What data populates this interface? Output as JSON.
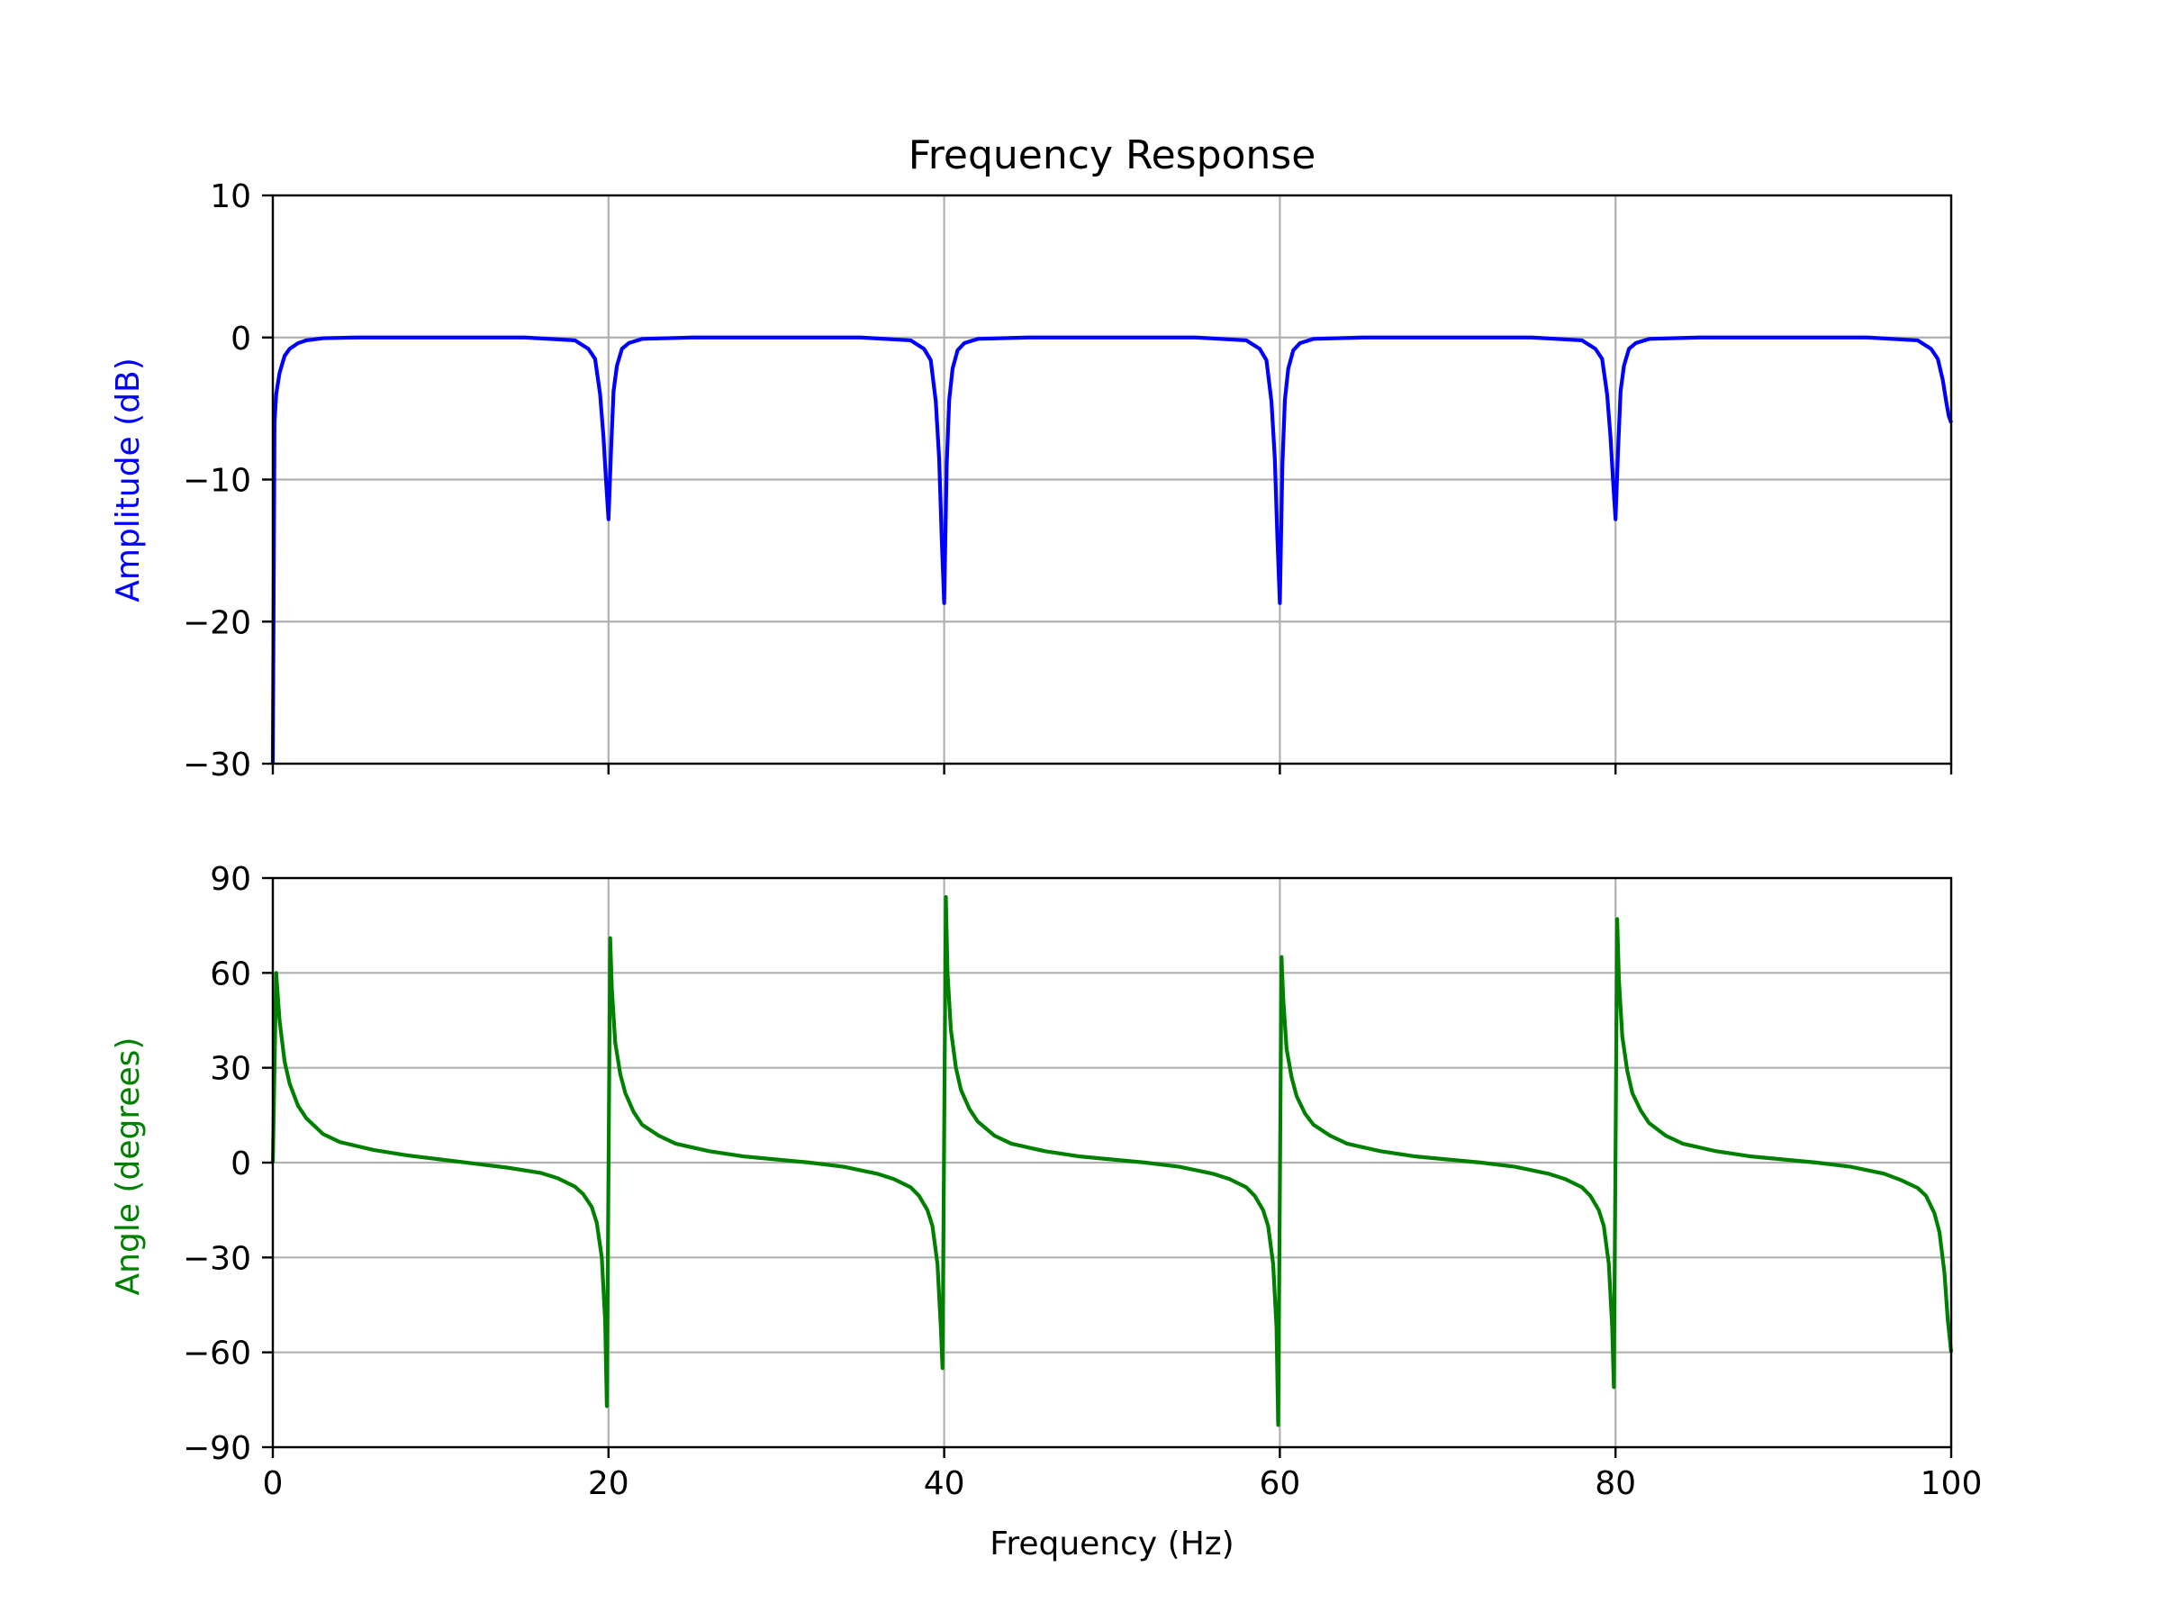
{
  "chart_data": [
    {
      "type": "line",
      "title": "Frequency Response",
      "xlabel": "",
      "ylabel": "Amplitude (dB)",
      "ylabel_color": "#0000ff",
      "line_color": "#0000ff",
      "xlim": [
        0,
        100
      ],
      "ylim": [
        -30,
        10
      ],
      "grid": true,
      "xticks": [
        0,
        20,
        40,
        60,
        80,
        100
      ],
      "yticks": [
        {
          "value": 10,
          "label": "10"
        },
        {
          "value": 0,
          "label": "0"
        },
        {
          "value": -10,
          "label": "−10"
        },
        {
          "value": -20,
          "label": "−20"
        },
        {
          "value": -30,
          "label": "−30"
        }
      ],
      "series": [
        {
          "x": [
            0,
            0.1,
            0.2,
            0.4,
            0.7,
            1,
            1.5,
            2,
            3,
            5,
            10,
            15,
            18,
            18.8,
            19.2,
            19.5,
            19.7,
            19.85,
            20,
            20.15,
            20.3,
            20.5,
            20.8,
            21.2,
            22,
            25,
            30,
            35,
            38,
            38.8,
            39.2,
            39.5,
            39.7,
            39.85,
            40,
            40.15,
            40.3,
            40.5,
            40.8,
            41.2,
            42,
            45,
            50,
            55,
            58,
            58.8,
            59.2,
            59.5,
            59.7,
            59.85,
            60,
            60.15,
            60.3,
            60.5,
            60.8,
            61.2,
            62,
            65,
            70,
            75,
            78,
            78.8,
            79.2,
            79.5,
            79.7,
            79.85,
            80,
            80.15,
            80.3,
            80.5,
            80.8,
            81.2,
            82,
            85,
            90,
            95,
            98,
            98.8,
            99.2,
            99.5,
            99.7,
            99.85,
            100
          ],
          "values": [
            -30,
            -6,
            -4,
            -2.5,
            -1.3,
            -0.8,
            -0.4,
            -0.2,
            -0.05,
            0,
            0,
            0,
            -0.2,
            -0.8,
            -1.5,
            -4,
            -7,
            -10,
            -12.8,
            -8,
            -3.8,
            -2,
            -0.8,
            -0.4,
            -0.1,
            0,
            0,
            0,
            -0.2,
            -0.8,
            -1.6,
            -4.5,
            -8.5,
            -14,
            -18.7,
            -9,
            -4.4,
            -2.2,
            -0.9,
            -0.4,
            -0.1,
            0,
            0,
            0,
            -0.2,
            -0.8,
            -1.6,
            -4.5,
            -8.5,
            -14,
            -18.7,
            -9,
            -4.4,
            -2.2,
            -0.9,
            -0.4,
            -0.1,
            0,
            0,
            0,
            -0.2,
            -0.8,
            -1.5,
            -4,
            -7,
            -10,
            -12.8,
            -8,
            -3.8,
            -2,
            -0.8,
            -0.4,
            -0.1,
            0,
            0,
            0,
            -0.2,
            -0.8,
            -1.5,
            -3,
            -4.5,
            -5.5,
            -6
          ]
        }
      ]
    },
    {
      "type": "line",
      "title": "",
      "xlabel": "Frequency (Hz)",
      "ylabel": "Angle (degrees)",
      "ylabel_color": "#008000",
      "line_color": "#008000",
      "xlim": [
        0,
        100
      ],
      "ylim": [
        -90,
        90
      ],
      "grid": true,
      "xticks": [
        0,
        20,
        40,
        60,
        80,
        100
      ],
      "yticks": [
        {
          "value": 90,
          "label": "90"
        },
        {
          "value": 60,
          "label": "60"
        },
        {
          "value": 30,
          "label": "30"
        },
        {
          "value": 0,
          "label": "0"
        },
        {
          "value": -30,
          "label": "−30"
        },
        {
          "value": -60,
          "label": "−60"
        },
        {
          "value": -90,
          "label": "−90"
        }
      ],
      "series": [
        {
          "x": [
            0,
            0.2,
            0.4,
            0.7,
            1,
            1.5,
            2,
            3,
            4,
            6,
            8,
            10,
            12,
            14,
            16,
            17,
            18,
            18.5,
            19,
            19.3,
            19.6,
            19.8,
            19.9,
            20.1,
            20.2,
            20.4,
            20.7,
            21,
            21.5,
            22,
            23,
            24,
            26,
            28,
            30,
            32,
            34,
            36,
            37,
            38,
            38.5,
            39,
            39.3,
            39.6,
            39.8,
            39.9,
            40.1,
            40.2,
            40.4,
            40.7,
            41,
            41.5,
            42,
            43,
            44,
            46,
            48,
            50,
            52,
            54,
            56,
            57,
            58,
            58.5,
            59,
            59.3,
            59.6,
            59.8,
            59.9,
            60.1,
            60.2,
            60.4,
            60.7,
            61,
            61.5,
            62,
            63,
            64,
            66,
            68,
            70,
            72,
            74,
            76,
            77,
            78,
            78.5,
            79,
            79.3,
            79.6,
            79.8,
            79.9,
            80.1,
            80.2,
            80.4,
            80.7,
            81,
            81.5,
            82,
            83,
            84,
            86,
            88,
            90,
            92,
            94,
            96,
            97,
            98,
            98.5,
            99,
            99.3,
            99.6,
            99.8,
            100
          ],
          "values": [
            0,
            60,
            45,
            32,
            25,
            18,
            14,
            9,
            6.5,
            4,
            2.3,
            1,
            -0.3,
            -1.6,
            -3.3,
            -5,
            -7.6,
            -10,
            -14,
            -19,
            -30,
            -50,
            -77,
            71,
            55,
            38,
            28,
            22,
            16,
            12,
            8.5,
            6,
            3.6,
            2,
            1,
            0,
            -1.3,
            -3.5,
            -5.2,
            -7.8,
            -10.5,
            -15,
            -20,
            -32,
            -52,
            -65,
            84,
            60,
            42,
            30,
            23,
            17,
            13,
            8.5,
            6,
            3.6,
            2,
            1,
            0,
            -1.3,
            -3.5,
            -5.2,
            -7.8,
            -10.5,
            -15,
            -20,
            -32,
            -52,
            -83,
            65,
            52,
            36,
            27,
            21,
            15.5,
            12,
            8.5,
            6,
            3.6,
            2,
            1,
            0,
            -1.3,
            -3.5,
            -5.2,
            -7.8,
            -10.5,
            -15,
            -20,
            -32,
            -52,
            -71,
            77,
            58,
            40,
            29,
            22,
            16.5,
            12.5,
            8.5,
            6,
            3.6,
            2,
            1,
            0,
            -1.3,
            -3.5,
            -5.5,
            -8,
            -10.5,
            -16,
            -22,
            -35,
            -50,
            -60
          ]
        }
      ]
    }
  ]
}
